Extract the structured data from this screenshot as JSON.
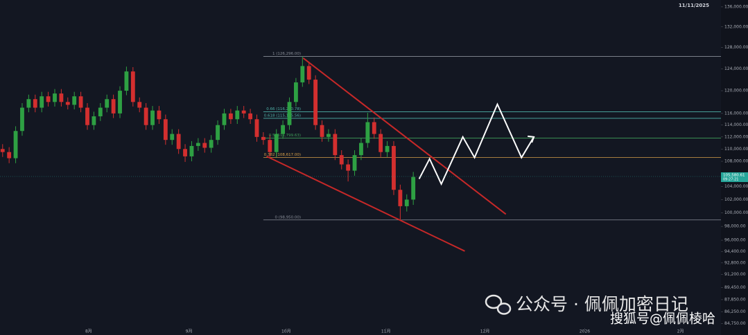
{
  "chart_data": {
    "type": "candlestick",
    "date_label": "11/11/2025",
    "log_scale": true,
    "categories": [
      null,
      null,
      null,
      null,
      null,
      null,
      null,
      null,
      null,
      null,
      null,
      null,
      null,
      null,
      null,
      null,
      null,
      null,
      null,
      null,
      null,
      null,
      null,
      null,
      null,
      null,
      null,
      null,
      null,
      null,
      null,
      null,
      null,
      null,
      null,
      null,
      null,
      null,
      null,
      null,
      null,
      null,
      null,
      null,
      null,
      null,
      null,
      null,
      null,
      null,
      null,
      null,
      null,
      null,
      null,
      null,
      null,
      null,
      null,
      null,
      null,
      null,
      null,
      null
    ],
    "open": [
      110000,
      109500,
      108500,
      113000,
      117000,
      118500,
      117000,
      119000,
      118000,
      119500,
      118000,
      117500,
      119000,
      117000,
      114000,
      115500,
      117000,
      118500,
      116000,
      120000,
      123500,
      118000,
      117000,
      114000,
      116500,
      115000,
      111500,
      112500,
      110000,
      108800,
      110500,
      111000,
      110200,
      111500,
      114000,
      116000,
      115000,
      116500,
      116000,
      115000,
      112000,
      111500,
      109500,
      112500,
      114000,
      118000,
      121500,
      124500,
      122000,
      114000,
      112000,
      112500,
      109000,
      107500,
      106500,
      109000,
      111000,
      114500,
      112500,
      109500,
      110500,
      103500,
      101000,
      102000
    ],
    "high": [
      110800,
      110300,
      113800,
      117800,
      119300,
      119300,
      119800,
      119800,
      120300,
      120300,
      118800,
      119800,
      119800,
      117800,
      116300,
      117800,
      119300,
      119300,
      120800,
      124400,
      124300,
      118800,
      117800,
      117300,
      117300,
      115800,
      113300,
      113300,
      110800,
      111300,
      111800,
      111800,
      112300,
      114800,
      116800,
      116800,
      117300,
      117300,
      116800,
      115800,
      112800,
      112300,
      113300,
      114800,
      118800,
      122300,
      126296,
      125300,
      122800,
      114800,
      113300,
      113300,
      109800,
      108300,
      109800,
      111800,
      116100,
      115300,
      113300,
      111300,
      111300,
      104300,
      102800,
      106300
    ],
    "low": [
      108700,
      107700,
      107700,
      112200,
      116200,
      116200,
      116200,
      117200,
      117200,
      117200,
      116700,
      116700,
      116200,
      113200,
      113200,
      114700,
      116200,
      115200,
      115200,
      119200,
      117200,
      116200,
      113200,
      113200,
      114200,
      110700,
      110700,
      109200,
      107900,
      108000,
      109700,
      109400,
      109400,
      110700,
      113200,
      114200,
      114200,
      115200,
      114200,
      111200,
      110700,
      108700,
      108700,
      111700,
      113200,
      117200,
      120700,
      121200,
      113200,
      111200,
      111200,
      108200,
      106700,
      104800,
      105700,
      108200,
      110200,
      111700,
      108700,
      108700,
      102700,
      98950,
      100200,
      101200
    ],
    "close": [
      109500,
      108500,
      113000,
      117000,
      118500,
      117000,
      119000,
      118000,
      119500,
      118000,
      117500,
      119000,
      117000,
      114000,
      115500,
      117000,
      118500,
      116000,
      120000,
      123500,
      118000,
      117000,
      114000,
      116500,
      115000,
      111500,
      112500,
      110000,
      108800,
      110500,
      111000,
      110200,
      111500,
      114000,
      116000,
      115000,
      116500,
      116000,
      115000,
      112000,
      111500,
      109500,
      112500,
      114000,
      118000,
      121500,
      124500,
      122000,
      114000,
      112000,
      112500,
      109000,
      107500,
      106500,
      109000,
      111000,
      114500,
      112500,
      109500,
      110500,
      103500,
      101000,
      102000,
      105500
    ],
    "up_color": "#2ea043",
    "down_color": "#d32f2f",
    "xlim": [
      -0.4,
      110.2
    ],
    "xticks": [
      {
        "value": 13.2,
        "label": "8月"
      },
      {
        "value": 28.6,
        "label": "9月"
      },
      {
        "value": 43.5,
        "label": "10月"
      },
      {
        "value": 58.8,
        "label": "11月"
      },
      {
        "value": 74.0,
        "label": "12月"
      },
      {
        "value": 89.3,
        "label": "2026"
      },
      {
        "value": 104.0,
        "label": "2月"
      }
    ],
    "ylim": [
      84200,
      137400
    ],
    "yticks": [
      {
        "value": 136000,
        "label": "136,000.00"
      },
      {
        "value": 132000,
        "label": "132,000.00"
      },
      {
        "value": 128000,
        "label": "128,000.00"
      },
      {
        "value": 124000,
        "label": "124,000.00"
      },
      {
        "value": 120000,
        "label": "120,000.00"
      },
      {
        "value": 116000,
        "label": "116,000.00"
      },
      {
        "value": 114000,
        "label": "114,000.00"
      },
      {
        "value": 112000,
        "label": "112,000.00"
      },
      {
        "value": 110000,
        "label": "110,000.00"
      },
      {
        "value": 108000,
        "label": "108,000.00"
      },
      {
        "value": 104000,
        "label": "104,000.00"
      },
      {
        "value": 102000,
        "label": "102,000.00"
      },
      {
        "value": 100000,
        "label": "100,000.00"
      },
      {
        "value": 98000,
        "label": "98,000.00"
      },
      {
        "value": 96000,
        "label": "96,000.00"
      },
      {
        "value": 94400,
        "label": "94,400.00"
      },
      {
        "value": 92800,
        "label": "92,800.00"
      },
      {
        "value": 91200,
        "label": "91,200.00"
      },
      {
        "value": 89450,
        "label": "89,450.00"
      },
      {
        "value": 87850,
        "label": "87,850.00"
      },
      {
        "value": 86250,
        "label": "86,250.00"
      },
      {
        "value": 84750,
        "label": "84,750.00"
      }
    ],
    "fib_levels": [
      {
        "price": 126296,
        "label": "1 (126,296.00)",
        "color": "#8a8f99"
      },
      {
        "price": 116290.78,
        "label": "0.66 (116,290.78)",
        "color": "#4fb3a9"
      },
      {
        "price": 115155.56,
        "label": "0.618 (115,155.56)",
        "color": "#4fb3a9"
      },
      {
        "price": 111799.63,
        "label": "0.5 (111,799.63)",
        "color": "#3f9f5a"
      },
      {
        "price": 108617,
        "label": "0.382 (108,617.00)",
        "color": "#d9a14a"
      },
      {
        "price": 98950,
        "label": "0 (98,950.00)",
        "color": "#8a8f99"
      }
    ],
    "trendlines": [
      {
        "color": "#c62828",
        "x": [
          46.1,
          77.2
        ],
        "y": [
          126000,
          99800
        ]
      },
      {
        "color": "#c62828",
        "x": [
          40.5,
          70.9
        ],
        "y": [
          108800,
          94450
        ]
      }
    ],
    "projection": {
      "color": "#ffffff",
      "x": [
        63.9,
        65.5,
        67.3,
        70.6,
        72.4,
        75.9,
        79.6,
        81.5
      ],
      "y": [
        105200,
        108400,
        104400,
        112000,
        108600,
        117600,
        108600,
        112000
      ]
    },
    "price_tag": {
      "value": 105580.61,
      "label": "105,580.61",
      "countdown": "09:27:21",
      "color": "#26a69a"
    },
    "watermarks": [
      "公众号 · 佩佩加密日记",
      "搜狐号@佩佩棱哈"
    ]
  }
}
